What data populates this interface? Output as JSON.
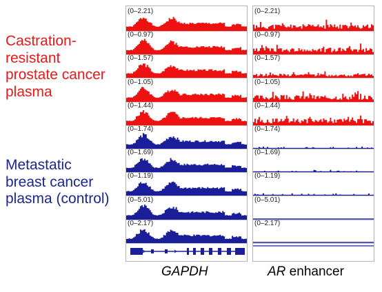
{
  "groups": [
    {
      "lines": [
        "Castration-",
        "resistant",
        "prostate cancer",
        "plasma"
      ],
      "color": "#e8191a"
    },
    {
      "lines": [
        "Metastatic",
        "breast cancer",
        "plasma (control)"
      ],
      "color": "#1d2590"
    }
  ],
  "panels": [
    {
      "caption_italic": "GAPDH",
      "caption_rest": "",
      "tracks": [
        {
          "range": "(0–2.21)",
          "color": "#ee1111",
          "profile": "gapdh",
          "seed": 1
        },
        {
          "range": "(0–0.97)",
          "color": "#ee1111",
          "profile": "gapdh",
          "seed": 2
        },
        {
          "range": "(0–1.57)",
          "color": "#ee1111",
          "profile": "gapdh",
          "seed": 3
        },
        {
          "range": "(0–1.05)",
          "color": "#ee1111",
          "profile": "gapdh",
          "seed": 4
        },
        {
          "range": "(0–1.44)",
          "color": "#ee1111",
          "profile": "gapdh",
          "seed": 5
        },
        {
          "range": "(0–1.74)",
          "color": "#1a1f99",
          "profile": "gapdh",
          "seed": 6
        },
        {
          "range": "(0–1.69)",
          "color": "#1a1f99",
          "profile": "gapdh",
          "seed": 7
        },
        {
          "range": "(0–1.19)",
          "color": "#1a1f99",
          "profile": "gapdh",
          "seed": 8
        },
        {
          "range": "(0–5.01)",
          "color": "#1a1f99",
          "profile": "gapdh",
          "seed": 9
        },
        {
          "range": "(0–2.17)",
          "color": "#1a1f99",
          "profile": "gapdh",
          "seed": 10
        }
      ]
    },
    {
      "caption_italic": "AR",
      "caption_rest": " enhancer",
      "tracks": [
        {
          "range": "(0–2.21)",
          "color": "#ee1111",
          "profile": "ar_red",
          "seed": 11
        },
        {
          "range": "(0–0.97)",
          "color": "#ee1111",
          "profile": "ar_red",
          "seed": 12
        },
        {
          "range": "(0–1.57)",
          "color": "#ee1111",
          "profile": "ar_red_low",
          "seed": 13
        },
        {
          "range": "(0–1.05)",
          "color": "#ee1111",
          "profile": "ar_red",
          "seed": 14
        },
        {
          "range": "(0–1.44)",
          "color": "#ee1111",
          "profile": "ar_red",
          "seed": 15
        },
        {
          "range": "(0–1.74)",
          "color": "#1a1f99",
          "profile": "flat",
          "seed": 16
        },
        {
          "range": "(0–1.69)",
          "color": "#1a1f99",
          "profile": "flat",
          "seed": 17
        },
        {
          "range": "(0–1.19)",
          "color": "#1a1f99",
          "profile": "flat",
          "seed": 18
        },
        {
          "range": "(0–5.01)",
          "color": "#1a1f99",
          "profile": "line",
          "seed": 19
        },
        {
          "range": "(0–2.17)",
          "color": "#1a1f99",
          "profile": "line",
          "seed": 20
        }
      ]
    }
  ],
  "gene_color": "#1a1f99"
}
